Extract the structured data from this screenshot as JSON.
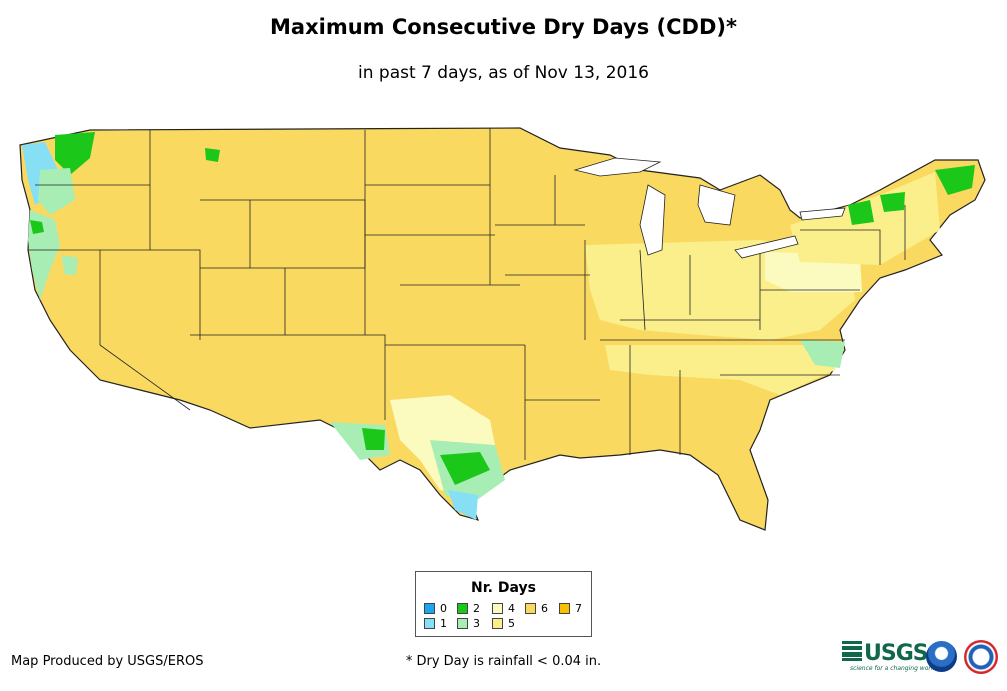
{
  "header": {
    "title": "Maximum Consecutive Dry Days (CDD)*",
    "subtitle": "in past 7 days, as of Nov 13, 2016"
  },
  "legend": {
    "title": "Nr. Days",
    "items": [
      {
        "label": "0",
        "color": "#1ca6f0"
      },
      {
        "label": "1",
        "color": "#86dff4"
      },
      {
        "label": "2",
        "color": "#1bc81a"
      },
      {
        "label": "3",
        "color": "#a8eeb4"
      },
      {
        "label": "4",
        "color": "#fbfbc0"
      },
      {
        "label": "5",
        "color": "#fbef8c"
      },
      {
        "label": "6",
        "color": "#fad961"
      },
      {
        "label": "7",
        "color": "#f9c000"
      }
    ]
  },
  "footer": {
    "credit": "Map Produced by USGS/EROS",
    "footnote": "* Dry Day is rainfall < 0.04 in.",
    "logos": {
      "usgs": "USGS",
      "usgs_tagline": "science for a changing world",
      "noaa": "noaa-logo",
      "nws": "nws-logo"
    }
  },
  "map": {
    "base_color": "#fad961",
    "outline_color": "#222222"
  }
}
